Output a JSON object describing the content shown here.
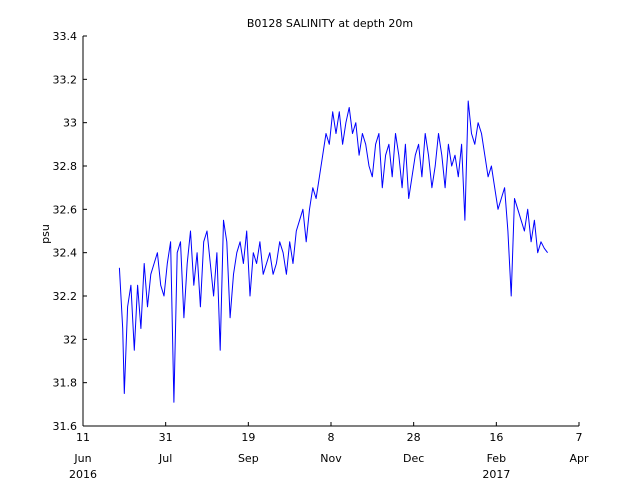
{
  "chart_data": {
    "type": "line",
    "title": "B0128 SALINITY at depth 20m",
    "ylabel": "psu",
    "xlabel": "",
    "ylim": [
      31.6,
      33.4
    ],
    "xlim": [
      "2016-06-11",
      "2017-04-07"
    ],
    "grid": false,
    "colors": {
      "line": "#0000ff",
      "axes": "#000000",
      "background": "#ffffff"
    },
    "y_ticks": [
      "31.6",
      "31.8",
      "32",
      "32.2",
      "32.4",
      "32.6",
      "32.8",
      "33",
      "33.2",
      "33.4"
    ],
    "x_ticks": [
      {
        "date": "2016-06-11",
        "day": "11",
        "month": "Jun",
        "year": "2016"
      },
      {
        "date": "2016-07-31",
        "day": "31",
        "month": "Jul",
        "year": ""
      },
      {
        "date": "2016-09-19",
        "day": "19",
        "month": "Sep",
        "year": ""
      },
      {
        "date": "2016-11-08",
        "day": "8",
        "month": "Nov",
        "year": ""
      },
      {
        "date": "2016-12-28",
        "day": "28",
        "month": "Dec",
        "year": ""
      },
      {
        "date": "2017-02-16",
        "day": "16",
        "month": "Feb",
        "year": "2017"
      },
      {
        "date": "2017-04-07",
        "day": "7",
        "month": "Apr",
        "year": ""
      }
    ],
    "series": [
      {
        "color": "#0000ff",
        "x": [
          "2016-07-03",
          "2016-07-05",
          "2016-07-06",
          "2016-07-08",
          "2016-07-10",
          "2016-07-12",
          "2016-07-14",
          "2016-07-16",
          "2016-07-18",
          "2016-07-20",
          "2016-07-22",
          "2016-07-24",
          "2016-07-26",
          "2016-07-28",
          "2016-07-30",
          "2016-08-01",
          "2016-08-03",
          "2016-08-05",
          "2016-08-07",
          "2016-08-09",
          "2016-08-11",
          "2016-08-13",
          "2016-08-15",
          "2016-08-17",
          "2016-08-19",
          "2016-08-21",
          "2016-08-23",
          "2016-08-25",
          "2016-08-27",
          "2016-08-29",
          "2016-08-31",
          "2016-09-02",
          "2016-09-04",
          "2016-09-06",
          "2016-09-08",
          "2016-09-10",
          "2016-09-12",
          "2016-09-14",
          "2016-09-16",
          "2016-09-18",
          "2016-09-20",
          "2016-09-22",
          "2016-09-24",
          "2016-09-26",
          "2016-09-28",
          "2016-09-30",
          "2016-10-02",
          "2016-10-04",
          "2016-10-06",
          "2016-10-08",
          "2016-10-10",
          "2016-10-12",
          "2016-10-14",
          "2016-10-16",
          "2016-10-18",
          "2016-10-20",
          "2016-10-22",
          "2016-10-24",
          "2016-10-26",
          "2016-10-28",
          "2016-10-30",
          "2016-11-01",
          "2016-11-03",
          "2016-11-05",
          "2016-11-07",
          "2016-11-09",
          "2016-11-11",
          "2016-11-13",
          "2016-11-15",
          "2016-11-17",
          "2016-11-19",
          "2016-11-21",
          "2016-11-23",
          "2016-11-25",
          "2016-11-27",
          "2016-11-29",
          "2016-12-01",
          "2016-12-03",
          "2016-12-05",
          "2016-12-07",
          "2016-12-09",
          "2016-12-11",
          "2016-12-13",
          "2016-12-15",
          "2016-12-17",
          "2016-12-19",
          "2016-12-21",
          "2016-12-23",
          "2016-12-25",
          "2016-12-27",
          "2016-12-29",
          "2016-12-31",
          "2017-01-02",
          "2017-01-04",
          "2017-01-06",
          "2017-01-08",
          "2017-01-10",
          "2017-01-12",
          "2017-01-14",
          "2017-01-16",
          "2017-01-18",
          "2017-01-20",
          "2017-01-22",
          "2017-01-24",
          "2017-01-26",
          "2017-01-28",
          "2017-01-30",
          "2017-02-01",
          "2017-02-03",
          "2017-02-05",
          "2017-02-07",
          "2017-02-09",
          "2017-02-11",
          "2017-02-13",
          "2017-02-15",
          "2017-02-17",
          "2017-02-19",
          "2017-02-21",
          "2017-02-23",
          "2017-02-25",
          "2017-02-27",
          "2017-03-01",
          "2017-03-03",
          "2017-03-05",
          "2017-03-07",
          "2017-03-09",
          "2017-03-11",
          "2017-03-13",
          "2017-03-15",
          "2017-03-17",
          "2017-03-19"
        ],
        "y": [
          32.33,
          32.05,
          31.75,
          32.15,
          32.25,
          31.95,
          32.25,
          32.05,
          32.35,
          32.15,
          32.3,
          32.35,
          32.4,
          32.25,
          32.2,
          32.35,
          32.45,
          31.71,
          32.4,
          32.45,
          32.1,
          32.35,
          32.5,
          32.25,
          32.4,
          32.15,
          32.45,
          32.5,
          32.35,
          32.2,
          32.4,
          31.95,
          32.55,
          32.45,
          32.1,
          32.3,
          32.4,
          32.45,
          32.35,
          32.5,
          32.2,
          32.4,
          32.35,
          32.45,
          32.3,
          32.35,
          32.4,
          32.3,
          32.35,
          32.45,
          32.4,
          32.3,
          32.45,
          32.35,
          32.5,
          32.55,
          32.6,
          32.45,
          32.6,
          32.7,
          32.65,
          32.75,
          32.85,
          32.95,
          32.9,
          33.05,
          32.95,
          33.05,
          32.9,
          33.0,
          33.07,
          32.95,
          33.0,
          32.85,
          32.95,
          32.9,
          32.8,
          32.75,
          32.9,
          32.95,
          32.7,
          32.85,
          32.9,
          32.75,
          32.95,
          32.85,
          32.7,
          32.9,
          32.65,
          32.75,
          32.85,
          32.9,
          32.75,
          32.95,
          32.85,
          32.7,
          32.8,
          32.95,
          32.85,
          32.7,
          32.9,
          32.8,
          32.85,
          32.75,
          32.9,
          32.55,
          33.1,
          32.95,
          32.9,
          33.0,
          32.95,
          32.85,
          32.75,
          32.8,
          32.7,
          32.6,
          32.65,
          32.7,
          32.5,
          32.2,
          32.65,
          32.6,
          32.55,
          32.5,
          32.6,
          32.45,
          32.55,
          32.4,
          32.45,
          32.42,
          32.4
        ]
      }
    ]
  }
}
